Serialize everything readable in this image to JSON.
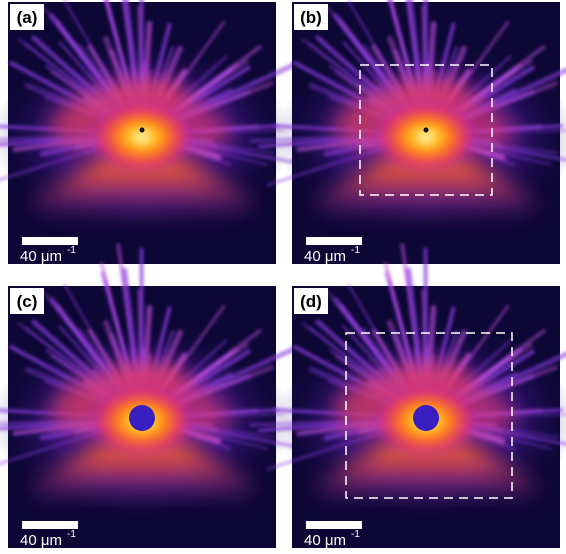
{
  "panels": [
    {
      "label": "(a)",
      "scale_bar": {
        "text": "40 μm",
        "exponent": "-1"
      }
    },
    {
      "label": "(b)",
      "scale_bar": {
        "text": "40 μm",
        "exponent": "-1"
      }
    },
    {
      "label": "(c)",
      "scale_bar": {
        "text": "40 μm",
        "exponent": "-1"
      }
    },
    {
      "label": "(d)",
      "scale_bar": {
        "text": "40 μm",
        "exponent": "-1"
      }
    }
  ]
}
